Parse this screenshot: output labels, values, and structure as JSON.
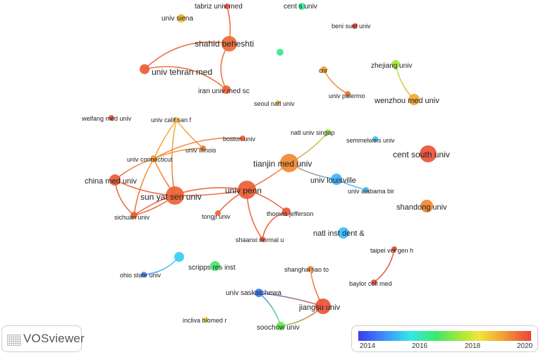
{
  "colors": {
    "scale": [
      "#3c3cf0",
      "#3fb3ff",
      "#34e8e8",
      "#3ee86a",
      "#9ee83a",
      "#f0e63a",
      "#f5b234",
      "#f07a30",
      "#e8453a"
    ],
    "min_year": 2013.6,
    "max_year": 2020.6
  },
  "legend": {
    "ticks": [
      "2014",
      "2016",
      "2018",
      "2020"
    ],
    "tick_years": [
      2014,
      2016,
      2018,
      2020
    ]
  },
  "logo": {
    "text": "VOSviewer",
    "icon": "vosviewer-logo-icon"
  },
  "nodes": [
    {
      "id": "tabriz",
      "label": "tabriz univ med",
      "year": 2020.3
    },
    {
      "id": "cents",
      "label": "cent s univ",
      "year": 2015.9
    },
    {
      "id": "siena",
      "label": "univ siena",
      "year": 2018.6
    },
    {
      "id": "benisuef",
      "label": "beni suef univ",
      "year": 2020.5
    },
    {
      "id": "beheshti",
      "label": "shahid beheshti",
      "year": 2020.0
    },
    {
      "id": "unlabeled",
      "label": "",
      "year": 2016.0
    },
    {
      "id": "tehran",
      "label": "univ tehran med",
      "year": 2020.2
    },
    {
      "id": "cnr",
      "label": "cnr",
      "year": 2019.2
    },
    {
      "id": "zhejiang",
      "label": "zhejiang univ",
      "year": 2017.2
    },
    {
      "id": "iran",
      "label": "iran univ med sc",
      "year": 2020.1
    },
    {
      "id": "palermo",
      "label": "univ palermo",
      "year": 2019.8
    },
    {
      "id": "wenzhou",
      "label": "wenzhou med univ",
      "year": 2019.0
    },
    {
      "id": "seoul",
      "label": "seoul natl univ",
      "year": 2018.8
    },
    {
      "id": "weifang",
      "label": "weifang med univ",
      "year": 2020.4
    },
    {
      "id": "califsf",
      "label": "univ calif san f",
      "year": 2018.9
    },
    {
      "id": "boston",
      "label": "boston univ",
      "year": 2020.1
    },
    {
      "id": "singap",
      "label": "natl univ singap",
      "year": 2017.0
    },
    {
      "id": "semmel",
      "label": "semmelweis univ",
      "year": 2014.8
    },
    {
      "id": "centsouth",
      "label": "cent south univ",
      "year": 2020.4
    },
    {
      "id": "illinois",
      "label": "univ illinois",
      "year": 2019.6
    },
    {
      "id": "connect",
      "label": "univ connecticut",
      "year": 2019.3
    },
    {
      "id": "tianjin",
      "label": "tianjin med univ",
      "year": 2019.5
    },
    {
      "id": "chinamed",
      "label": "china med univ",
      "year": 2020.2
    },
    {
      "id": "louisv",
      "label": "univ louisville",
      "year": 2014.5
    },
    {
      "id": "penn",
      "label": "univ penn",
      "year": 2020.2
    },
    {
      "id": "sunyat",
      "label": "sun yat sen univ",
      "year": 2020.1
    },
    {
      "id": "alabama",
      "label": "univ alabama bir",
      "year": 2014.6
    },
    {
      "id": "shandong",
      "label": "shandong univ",
      "year": 2019.5
    },
    {
      "id": "tongji",
      "label": "tongji univ",
      "year": 2020.1
    },
    {
      "id": "jefferson",
      "label": "thomas jefferson",
      "year": 2020.3
    },
    {
      "id": "sichuan",
      "label": "sichuan univ",
      "year": 2020.2
    },
    {
      "id": "natlinst",
      "label": "natl inst dent &",
      "year": 2014.6
    },
    {
      "id": "shaanxi",
      "label": "shaanxi normal u",
      "year": 2020.3
    },
    {
      "id": "taipei",
      "label": "taipei vet gen h",
      "year": 2020.5
    },
    {
      "id": "blue2",
      "label": "",
      "year": 2014.9
    },
    {
      "id": "scripps",
      "label": "scripps res inst",
      "year": 2016.2
    },
    {
      "id": "shanghai",
      "label": "shanghai jiao to",
      "year": 2019.5
    },
    {
      "id": "ohio",
      "label": "ohio state univ",
      "year": 2014.2
    },
    {
      "id": "baylor",
      "label": "baylor coll med",
      "year": 2020.5
    },
    {
      "id": "saskat",
      "label": "univ saskatchewa",
      "year": 2014.1
    },
    {
      "id": "jiangsu",
      "label": "jiangsu univ",
      "year": 2020.4
    },
    {
      "id": "incliva",
      "label": "incliva biomed r",
      "year": 2018.2
    },
    {
      "id": "soochow",
      "label": "soochow univ",
      "year": 2016.6
    }
  ]
}
